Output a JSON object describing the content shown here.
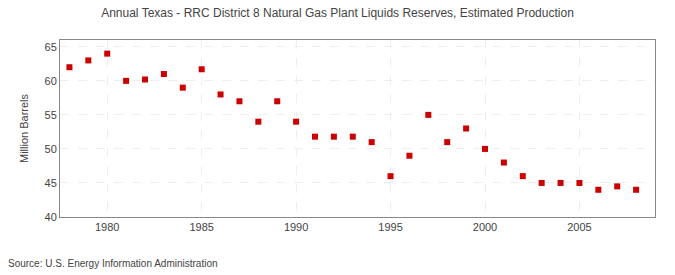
{
  "chart_data": {
    "type": "scatter",
    "title": "Annual Texas - RRC District 8 Natural Gas Plant Liquids Reserves, Estimated Production",
    "ylabel": "Million Barrels",
    "annotations": [
      {
        "text": "Source: U.S. Energy Information Administration"
      }
    ],
    "x": [
      1978,
      1979,
      1980,
      1981,
      1982,
      1983,
      1984,
      1985,
      1986,
      1987,
      1988,
      1989,
      1990,
      1991,
      1992,
      1993,
      1994,
      1995,
      1996,
      1997,
      1998,
      1999,
      2000,
      2001,
      2002,
      2003,
      2004,
      2005,
      2006,
      2007,
      2008
    ],
    "values": [
      62.0,
      63.0,
      64.0,
      60.0,
      60.2,
      61.0,
      59.0,
      61.7,
      58.0,
      57.0,
      54.0,
      57.0,
      54.0,
      51.8,
      51.8,
      51.8,
      51.0,
      46.0,
      49.0,
      55.0,
      51.0,
      53.0,
      50.0,
      48.0,
      46.0,
      45.0,
      45.0,
      45.0,
      44.0,
      44.5,
      44.0
    ],
    "color": "#cc0000",
    "marker": "square",
    "xlim": [
      1977.5,
      2009
    ],
    "ylim": [
      40,
      66
    ],
    "xticks": [
      1980,
      1985,
      1990,
      1995,
      2000,
      2005
    ],
    "yticks": [
      40,
      45,
      50,
      55,
      60,
      65
    ],
    "grid": true
  }
}
